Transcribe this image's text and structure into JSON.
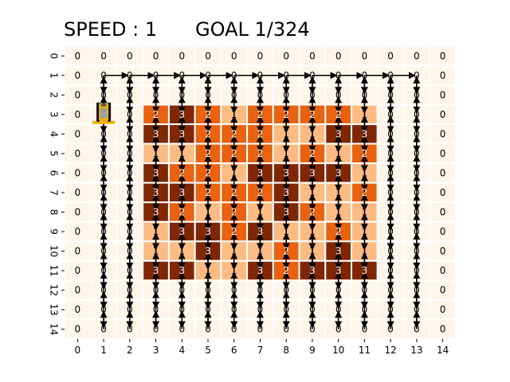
{
  "header": {
    "speed_text": "SPEED : 1",
    "goal_text": "GOAL 1/324"
  },
  "grid": {
    "rows": 15,
    "cols": 15,
    "x_tick_labels": [
      "0",
      "1",
      "2",
      "3",
      "4",
      "5",
      "6",
      "7",
      "8",
      "9",
      "10",
      "11",
      "12",
      "13",
      "14"
    ],
    "y_tick_labels": [
      "0",
      "1",
      "2",
      "3",
      "4",
      "5",
      "6",
      "7",
      "8",
      "9",
      "10",
      "11",
      "12",
      "13",
      "14"
    ],
    "values": [
      [
        0,
        0,
        0,
        0,
        0,
        0,
        0,
        0,
        0,
        0,
        0,
        0,
        0,
        0,
        0
      ],
      [
        0,
        0,
        0,
        0,
        0,
        0,
        0,
        0,
        0,
        0,
        0,
        0,
        0,
        0,
        0
      ],
      [
        0,
        0,
        0,
        0,
        0,
        0,
        0,
        0,
        0,
        0,
        0,
        0,
        0,
        0,
        0
      ],
      [
        0,
        0,
        0,
        2,
        3,
        2,
        1,
        2,
        2,
        2,
        2,
        1,
        0,
        0,
        0
      ],
      [
        0,
        0,
        0,
        3,
        3,
        2,
        2,
        2,
        1,
        1,
        3,
        3,
        0,
        0,
        0
      ],
      [
        0,
        0,
        0,
        1,
        1,
        2,
        2,
        2,
        1,
        2,
        1,
        2,
        0,
        0,
        0
      ],
      [
        0,
        0,
        0,
        3,
        2,
        2,
        1,
        3,
        3,
        3,
        3,
        1,
        0,
        0,
        0
      ],
      [
        0,
        0,
        0,
        3,
        3,
        2,
        2,
        2,
        3,
        1,
        1,
        2,
        0,
        0,
        0
      ],
      [
        0,
        0,
        0,
        3,
        2,
        1,
        2,
        1,
        3,
        2,
        1,
        1,
        0,
        0,
        0
      ],
      [
        0,
        0,
        0,
        1,
        3,
        3,
        2,
        3,
        1,
        1,
        2,
        1,
        0,
        0,
        0
      ],
      [
        0,
        0,
        0,
        1,
        1,
        3,
        1,
        1,
        2,
        1,
        3,
        1,
        0,
        0,
        0
      ],
      [
        0,
        0,
        0,
        3,
        3,
        1,
        1,
        3,
        2,
        3,
        3,
        3,
        0,
        0,
        0
      ],
      [
        0,
        0,
        0,
        0,
        0,
        0,
        0,
        0,
        0,
        0,
        0,
        0,
        0,
        0,
        0
      ],
      [
        0,
        0,
        0,
        0,
        0,
        0,
        0,
        0,
        0,
        0,
        0,
        0,
        0,
        0,
        0
      ],
      [
        0,
        0,
        0,
        0,
        0,
        0,
        0,
        0,
        0,
        0,
        0,
        0,
        0,
        0,
        0
      ]
    ]
  },
  "colors": {
    "level_0": "#fff5eb",
    "level_1": "#fdbb84",
    "level_2": "#e8620f",
    "level_3": "#7f2704",
    "text_light": "#000000",
    "text_dark": "#ffffff",
    "arrow": "#000000",
    "robot_body": "#f5b400"
  },
  "robot": {
    "icon": "robot-vehicle-icon",
    "row": 3,
    "col": 1
  },
  "path": {
    "icon": "path-arrow",
    "columns": [
      1,
      2,
      3,
      4,
      5,
      6,
      7,
      8,
      9,
      10,
      11,
      12,
      13
    ],
    "top_row": 1,
    "bottom_row": 14
  }
}
